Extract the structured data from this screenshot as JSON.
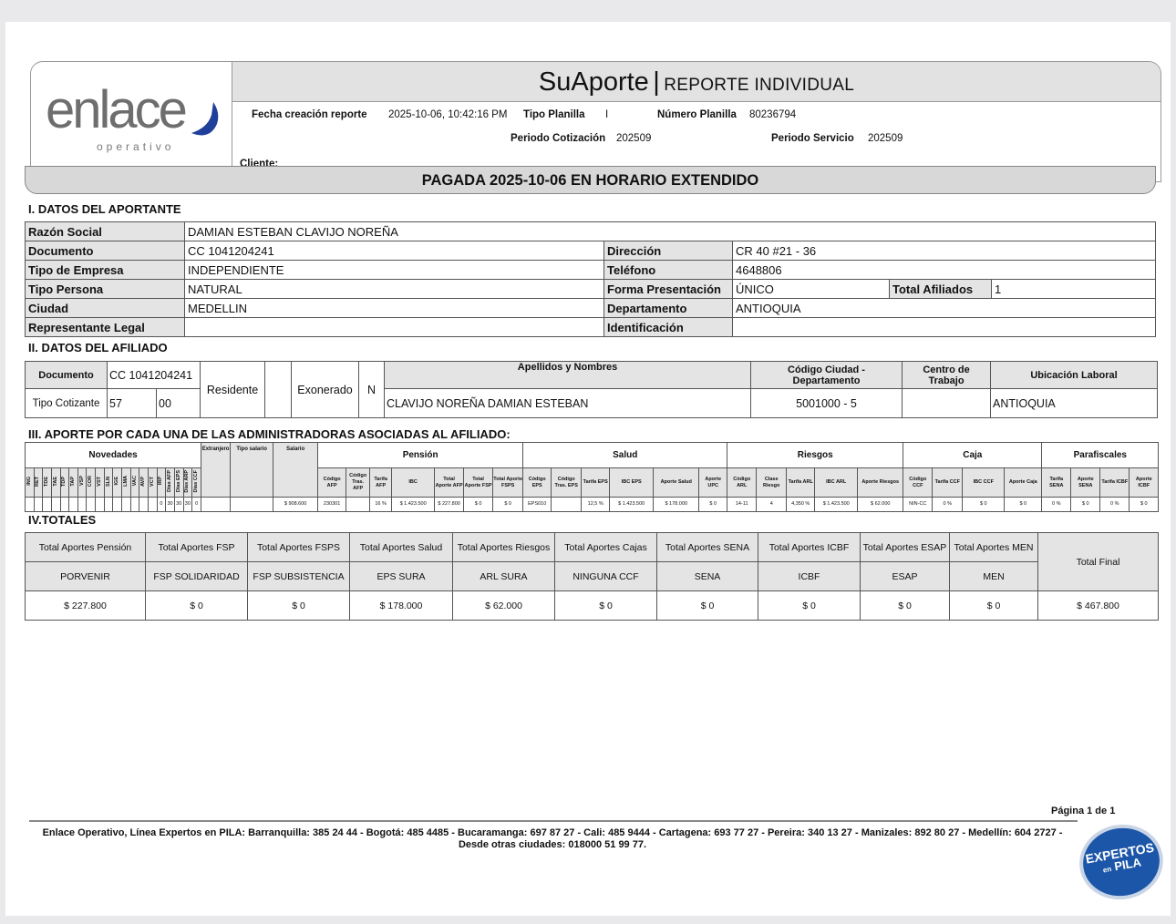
{
  "header": {
    "brand": "enlace",
    "brand_sub": "operativo",
    "title": "SuAporte",
    "subtitle": "REPORTE INDIVIDUAL",
    "fecha_label": "Fecha creación reporte",
    "fecha": "2025-10-06, 10:42:16 PM",
    "tipo_planilla_label": "Tipo Planilla",
    "tipo_planilla": "I",
    "numero_label": "Número Planilla",
    "numero": "80236794",
    "periodo_cot_label": "Periodo Cotización",
    "periodo_cot": "202509",
    "periodo_serv_label": "Periodo Servicio",
    "periodo_serv": "202509",
    "cliente_label": "Cliente:"
  },
  "banner": "PAGADA 2025-10-06 EN HORARIO EXTENDIDO",
  "aportante": {
    "title": "I. DATOS DEL APORTANTE",
    "razon_label": "Razón Social",
    "razon": "DAMIAN ESTEBAN CLAVIJO NOREÑA",
    "rows": [
      {
        "k1": "Documento",
        "v1": "CC 1041204241",
        "k2": "Dirección",
        "v2": "CR 40 #21 - 36"
      },
      {
        "k1": "Tipo de Empresa",
        "v1": "INDEPENDIENTE",
        "k2": "Teléfono",
        "v2": "4648806"
      },
      {
        "k1": "Tipo Persona",
        "v1": "NATURAL",
        "k2": "Forma Presentación",
        "v2": "ÚNICO",
        "k3": "Total Afiliados",
        "v3": "1"
      },
      {
        "k1": "Ciudad",
        "v1": "MEDELLIN",
        "k2": "Departamento",
        "v2": "ANTIOQUIA"
      },
      {
        "k1": "Representante Legal",
        "v1": "",
        "k2": "Identificación",
        "v2": ""
      }
    ]
  },
  "afiliado": {
    "title": "II. DATOS DEL AFILIADO",
    "documento_label": "Documento",
    "documento": "CC 1041204241",
    "tipo_cot_label": "Tipo Cotizante",
    "tipo_cot": "57",
    "subtipo": "00",
    "residente_label": "Residente",
    "residente": "",
    "exonerado_label": "Exonerado",
    "exonerado": "N",
    "nombres_label": "Apellidos y Nombres",
    "nombres": "CLAVIJO NOREÑA DAMIAN ESTEBAN",
    "ciudad_label": "Código Ciudad - Departamento",
    "ciudad": "5001000 - 5",
    "centro_label": "Centro de Trabajo",
    "centro": "",
    "ubicacion_label": "Ubicación Laboral",
    "ubicacion": "ANTIOQUIA"
  },
  "aportes": {
    "title": "III. APORTE POR CADA UNA DE LAS ADMINISTRADORAS ASOCIADAS AL AFILIADO:",
    "novedades_label": "Novedades",
    "novedades": [
      "ING",
      "RET",
      "TDE",
      "TAE",
      "TDP",
      "TAP",
      "VSP",
      "COR",
      "VST",
      "SLN",
      "IGE",
      "LMA",
      "VAC",
      "AVP",
      "VCT",
      "IRP",
      "Días AFP",
      "Días EPS",
      "Días ARP",
      "Días CCF"
    ],
    "novedades_values": [
      "",
      "",
      "",
      "",
      "",
      "",
      "",
      "",
      "",
      "",
      "",
      "",
      "",
      "",
      "",
      "0",
      "30",
      "30",
      "30",
      "0"
    ],
    "extra": [
      {
        "label": "Extranjero",
        "value": ""
      },
      {
        "label": "Tipo salario",
        "value": ""
      },
      {
        "label": "Salario",
        "value": "$ 908.600"
      }
    ],
    "groups": [
      {
        "name": "Pensión",
        "cols": [
          [
            "Código AFP",
            "230301"
          ],
          [
            "Código Tras. AFP",
            ""
          ],
          [
            "Tarifa AFP",
            "16 %"
          ],
          [
            "IBC",
            "$ 1.423.500"
          ],
          [
            "Total Aporte AFP",
            "$ 227.800"
          ],
          [
            "Total Aporte FSP",
            "$ 0"
          ],
          [
            "Total Aporte FSPS",
            "$ 0"
          ]
        ]
      },
      {
        "name": "Salud",
        "cols": [
          [
            "Código EPS",
            "EPS010"
          ],
          [
            "Código Tras. EPS",
            ""
          ],
          [
            "Tarifa EPS",
            "12,5 %"
          ],
          [
            "IBC EPS",
            "$ 1.423.500"
          ],
          [
            "Aporte Salud",
            "$ 178.000"
          ],
          [
            "Aporte UPC",
            "$ 0"
          ]
        ]
      },
      {
        "name": "Riesgos",
        "cols": [
          [
            "Código ARL",
            "14-11"
          ],
          [
            "Clase Riesgo",
            "4"
          ],
          [
            "Tarifa ARL",
            "4,350 %"
          ],
          [
            "IBC ARL",
            "$ 1.423.500"
          ],
          [
            "Aporte Riesgos",
            "$ 62.000"
          ]
        ]
      },
      {
        "name": "Caja",
        "cols": [
          [
            "Código CCF",
            "NIN-CC"
          ],
          [
            "Tarifa CCF",
            "0 %"
          ],
          [
            "IBC CCF",
            "$ 0"
          ],
          [
            "Aporte Caja",
            "$ 0"
          ]
        ]
      },
      {
        "name": "Parafiscales",
        "cols": [
          [
            "Tarifa SENA",
            "0 %"
          ],
          [
            "Aporte SENA",
            "$ 0"
          ],
          [
            "Tarifa ICBF",
            "0 %"
          ],
          [
            "Aporte ICBF",
            "$ 0"
          ]
        ]
      }
    ]
  },
  "totales": {
    "title": "IV.TOTALES",
    "final_label": "Total Final",
    "final": "$ 467.800",
    "cols": [
      {
        "label": "Total Aportes Pensión",
        "entity": "PORVENIR",
        "value": "$ 227.800"
      },
      {
        "label": "Total Aportes FSP",
        "entity": "FSP SOLIDARIDAD",
        "value": "$ 0"
      },
      {
        "label": "Total Aportes FSPS",
        "entity": "FSP SUBSISTENCIA",
        "value": "$ 0"
      },
      {
        "label": "Total Aportes Salud",
        "entity": "EPS SURA",
        "value": "$ 178.000"
      },
      {
        "label": "Total Aportes Riesgos",
        "entity": "ARL SURA",
        "value": "$ 62.000"
      },
      {
        "label": "Total Aportes Cajas",
        "entity": "NINGUNA CCF",
        "value": "$ 0"
      },
      {
        "label": "Total Aportes SENA",
        "entity": "SENA",
        "value": "$ 0"
      },
      {
        "label": "Total Aportes ICBF",
        "entity": "ICBF",
        "value": "$ 0"
      },
      {
        "label": "Total Aportes ESAP",
        "entity": "ESAP",
        "value": "$ 0"
      },
      {
        "label": "Total Aportes MEN",
        "entity": "MEN",
        "value": "$ 0"
      }
    ]
  },
  "footer": {
    "page": "Página 1 de  1",
    "line1": "Enlace Operativo, Línea Expertos en PILA: Barranquilla: 385 24 44 - Bogotá: 485 4485 - Bucaramanga: 697 87 27 - Cali: 485 9444 - Cartagena: 693 77 27 - Pereira: 340 13 27 - Manizales: 892 80 27 - Medellín: 604 2727 -",
    "line2": "Desde otras ciudades: 018000 51 99 77.",
    "badge_top": "EXPERTOS",
    "badge_en": "en",
    "badge_bottom": "PILA"
  },
  "colors": {
    "header_gray": "#e2e2e2",
    "banner_gray": "#d8d8d8",
    "logo_blue": "#1f3f9a",
    "badge_blue": "#1c56a8"
  }
}
